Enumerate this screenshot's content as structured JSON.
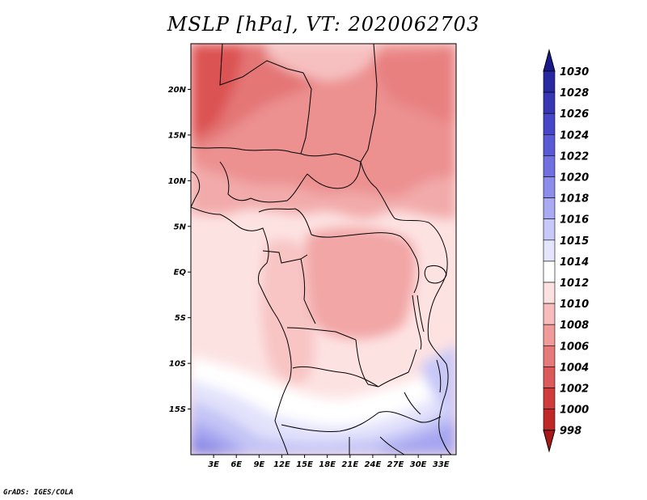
{
  "title": "MSLP [hPa], VT: 2020062703",
  "credit": "GrADS: IGES/COLA",
  "map": {
    "lon_range": [
      0,
      35
    ],
    "lat_range": [
      -20,
      25
    ],
    "lat_ticks": [
      "20N",
      "15N",
      "10N",
      "5N",
      "EQ",
      "5S",
      "10S",
      "15S"
    ],
    "lat_tick_values": [
      20,
      15,
      10,
      5,
      0,
      -5,
      -10,
      -15
    ],
    "lon_ticks": [
      "3E",
      "6E",
      "9E",
      "12E",
      "15E",
      "18E",
      "21E",
      "24E",
      "27E",
      "30E",
      "33E"
    ],
    "lon_tick_values": [
      3,
      6,
      9,
      12,
      15,
      18,
      21,
      24,
      27,
      30,
      33
    ]
  },
  "colorbar": {
    "labels": [
      "1030",
      "1028",
      "1026",
      "1024",
      "1022",
      "1020",
      "1018",
      "1016",
      "1015",
      "1014",
      "1012",
      "1010",
      "1008",
      "1006",
      "1004",
      "1002",
      "1000",
      "998"
    ],
    "colors": [
      "#1a1a8c",
      "#2828a0",
      "#3737b4",
      "#4646c8",
      "#5a5ad6",
      "#7070e0",
      "#8c8cea",
      "#aaaaf2",
      "#c8c8f8",
      "#e4e4fc",
      "#ffffff",
      "#fde0e0",
      "#f8bcbc",
      "#f09a9a",
      "#e67a7a",
      "#dc5a5a",
      "#d03c3c",
      "#c02828",
      "#a81818"
    ]
  }
}
